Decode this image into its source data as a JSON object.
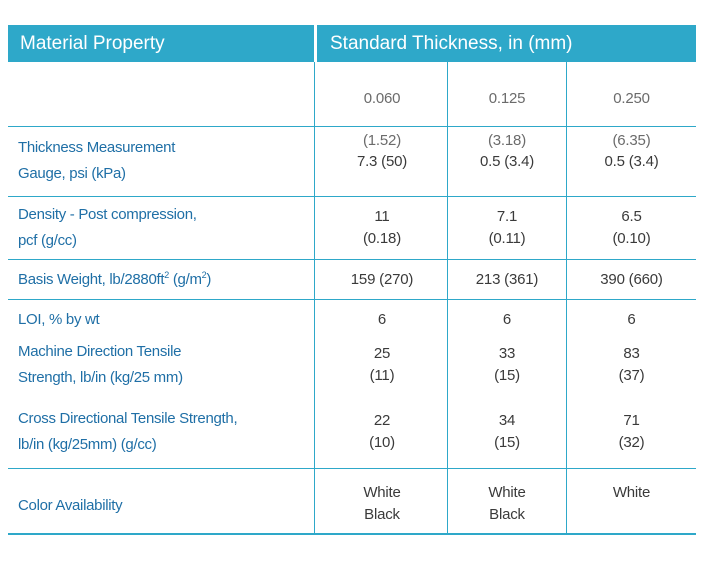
{
  "header": {
    "property_label": "Material Property",
    "thickness_label": "Standard Thickness, in (mm)"
  },
  "thickness_columns": [
    {
      "in": "0.060",
      "mm": "(1.52)"
    },
    {
      "in": "0.125",
      "mm": "(3.18)"
    },
    {
      "in": "0.250",
      "mm": "(6.35)"
    }
  ],
  "rows": [
    {
      "label_line1": "Thickness Measurement",
      "label_line2": "Gauge, psi (kPa)",
      "values": [
        "7.3 (50)",
        "0.5 (3.4)",
        "0.5 (3.4)"
      ]
    },
    {
      "label_line1": "Density - Post compression,",
      "label_line2": "pcf (g/cc)",
      "values": [
        "11\n(0.18)",
        "7.1\n(0.11)",
        "6.5\n(0.10)"
      ]
    },
    {
      "label_pre": "Basis Weight, lb/2880ft",
      "label_sup1": "2",
      "label_mid": " (g/m",
      "label_sup2": "2",
      "label_post": ")",
      "values": [
        "159 (270)",
        "213 (361)",
        "390 (660)"
      ]
    },
    {
      "label": "LOI, % by wt",
      "values": [
        "6",
        "6",
        "6"
      ]
    },
    {
      "label_line1": "Machine Direction Tensile",
      "label_line2": "Strength, lb/in (kg/25 mm)",
      "values": [
        "25\n(11)",
        "33\n(15)",
        "83\n(37)"
      ]
    },
    {
      "label_line1": "Cross Directional Tensile Strength,",
      "label_line2": "lb/in (kg/25mm) (g/cc)",
      "values": [
        "22\n(10)",
        "34\n(15)",
        "71\n(32)"
      ]
    },
    {
      "label": "Color Availability",
      "values": [
        "White\nBlack",
        "White\nBlack",
        "White"
      ]
    }
  ],
  "colors": {
    "accent": "#2ea8c9",
    "label_text": "#1f6fa6",
    "value_text": "#3a3a3a"
  }
}
